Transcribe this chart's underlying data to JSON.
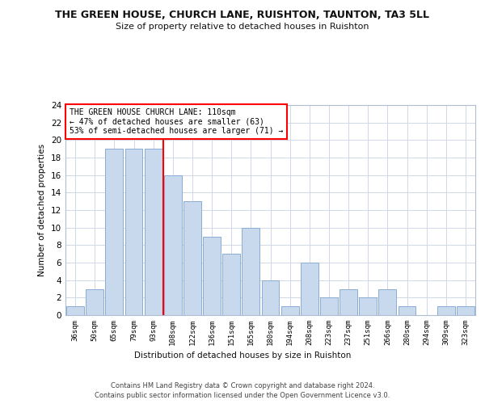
{
  "title": "THE GREEN HOUSE, CHURCH LANE, RUISHTON, TAUNTON, TA3 5LL",
  "subtitle": "Size of property relative to detached houses in Ruishton",
  "xlabel": "Distribution of detached houses by size in Ruishton",
  "ylabel": "Number of detached properties",
  "bin_labels": [
    "36sqm",
    "50sqm",
    "65sqm",
    "79sqm",
    "93sqm",
    "108sqm",
    "122sqm",
    "136sqm",
    "151sqm",
    "165sqm",
    "180sqm",
    "194sqm",
    "208sqm",
    "223sqm",
    "237sqm",
    "251sqm",
    "266sqm",
    "280sqm",
    "294sqm",
    "309sqm",
    "323sqm"
  ],
  "values": [
    1,
    3,
    19,
    19,
    19,
    16,
    13,
    9,
    7,
    10,
    4,
    1,
    6,
    2,
    3,
    2,
    3,
    1,
    0,
    1,
    1
  ],
  "bar_color": "#c8d9ee",
  "bar_edge_color": "#8aadd4",
  "ylim": [
    0,
    24
  ],
  "yticks": [
    0,
    2,
    4,
    6,
    8,
    10,
    12,
    14,
    16,
    18,
    20,
    22,
    24
  ],
  "red_line_index": 4.5,
  "annotation_text": "THE GREEN HOUSE CHURCH LANE: 110sqm\n← 47% of detached houses are smaller (63)\n53% of semi-detached houses are larger (71) →",
  "footer_text": "Contains HM Land Registry data © Crown copyright and database right 2024.\nContains public sector information licensed under the Open Government Licence v3.0.",
  "background_color": "#ffffff",
  "grid_color": "#d0d8e8"
}
